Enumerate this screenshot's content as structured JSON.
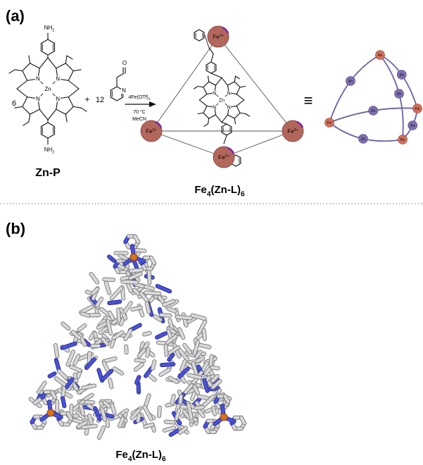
{
  "panel_a": {
    "label": "(a)",
    "reactant_name": "Zn-P",
    "coefficient_porphyrin": "6",
    "plus": "+",
    "coefficient_aldehyde": "12",
    "atom_n": "N",
    "atom_zn": "Zn",
    "atom_o": "O",
    "amine": [
      {
        "t": "NH"
      },
      {
        "t": "2",
        "sub": true
      }
    ],
    "reagent": [
      {
        "t": "4Fe(OTf)"
      },
      {
        "t": "2",
        "sub": true
      }
    ],
    "temperature": "70 °C",
    "solvent": "MeCN",
    "iron_ion": [
      {
        "t": "Fe"
      },
      {
        "t": "2+",
        "sup": true
      }
    ],
    "equivalent": "≡",
    "product": [
      {
        "t": "Fe"
      },
      {
        "t": "4",
        "sub": true
      },
      {
        "t": "(Zn-L)"
      },
      {
        "t": "6",
        "sub": true
      }
    ],
    "schematic_fe": "Fe",
    "schematic_zn": "Zn"
  },
  "panel_b": {
    "label": "(b)",
    "product": [
      {
        "t": "Fe"
      },
      {
        "t": "4",
        "sub": true
      },
      {
        "t": "(Zn-L)"
      },
      {
        "t": "6",
        "sub": true
      }
    ]
  }
}
